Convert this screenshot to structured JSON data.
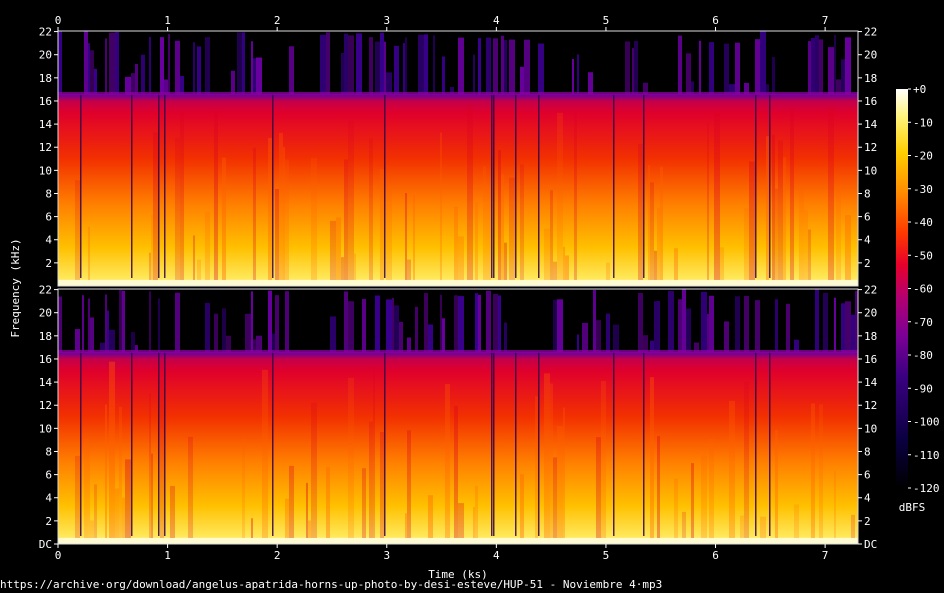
{
  "chart_data": {
    "type": "heatmap",
    "title": "",
    "xlabel": "Time (ks)",
    "ylabel": "Frequency (kHz)",
    "xlim": [
      0,
      7.3
    ],
    "ylim": [
      0,
      22.05
    ],
    "x_ticks": [
      "0",
      "1",
      "2",
      "3",
      "4",
      "5",
      "6",
      "7"
    ],
    "y_ticks": [
      "DC",
      "2",
      "4",
      "6",
      "8",
      "10",
      "12",
      "14",
      "16",
      "18",
      "20",
      "22"
    ],
    "channels": 2,
    "colorbar": {
      "label": "dBFS",
      "ticks": [
        "+0",
        "-10",
        "-20",
        "-30",
        "-40",
        "-50",
        "-60",
        "-70",
        "-80",
        "-90",
        "-100",
        "-110",
        "-120"
      ],
      "range": [
        -120,
        0
      ]
    },
    "lowpass_cutoff_khz": 16,
    "colormap": [
      "#000000",
      "#0a0040",
      "#3a0080",
      "#7a0095",
      "#b4006f",
      "#e8002a",
      "#ff3a00",
      "#ff8c00",
      "#ffce00",
      "#fff37a",
      "#ffffff"
    ]
  },
  "footer": {
    "source": "https://archive·org/download/angelus-apatrida-horns-up-photo-by-desi-esteve/HUP-51 - Noviembre 4·mp3"
  }
}
